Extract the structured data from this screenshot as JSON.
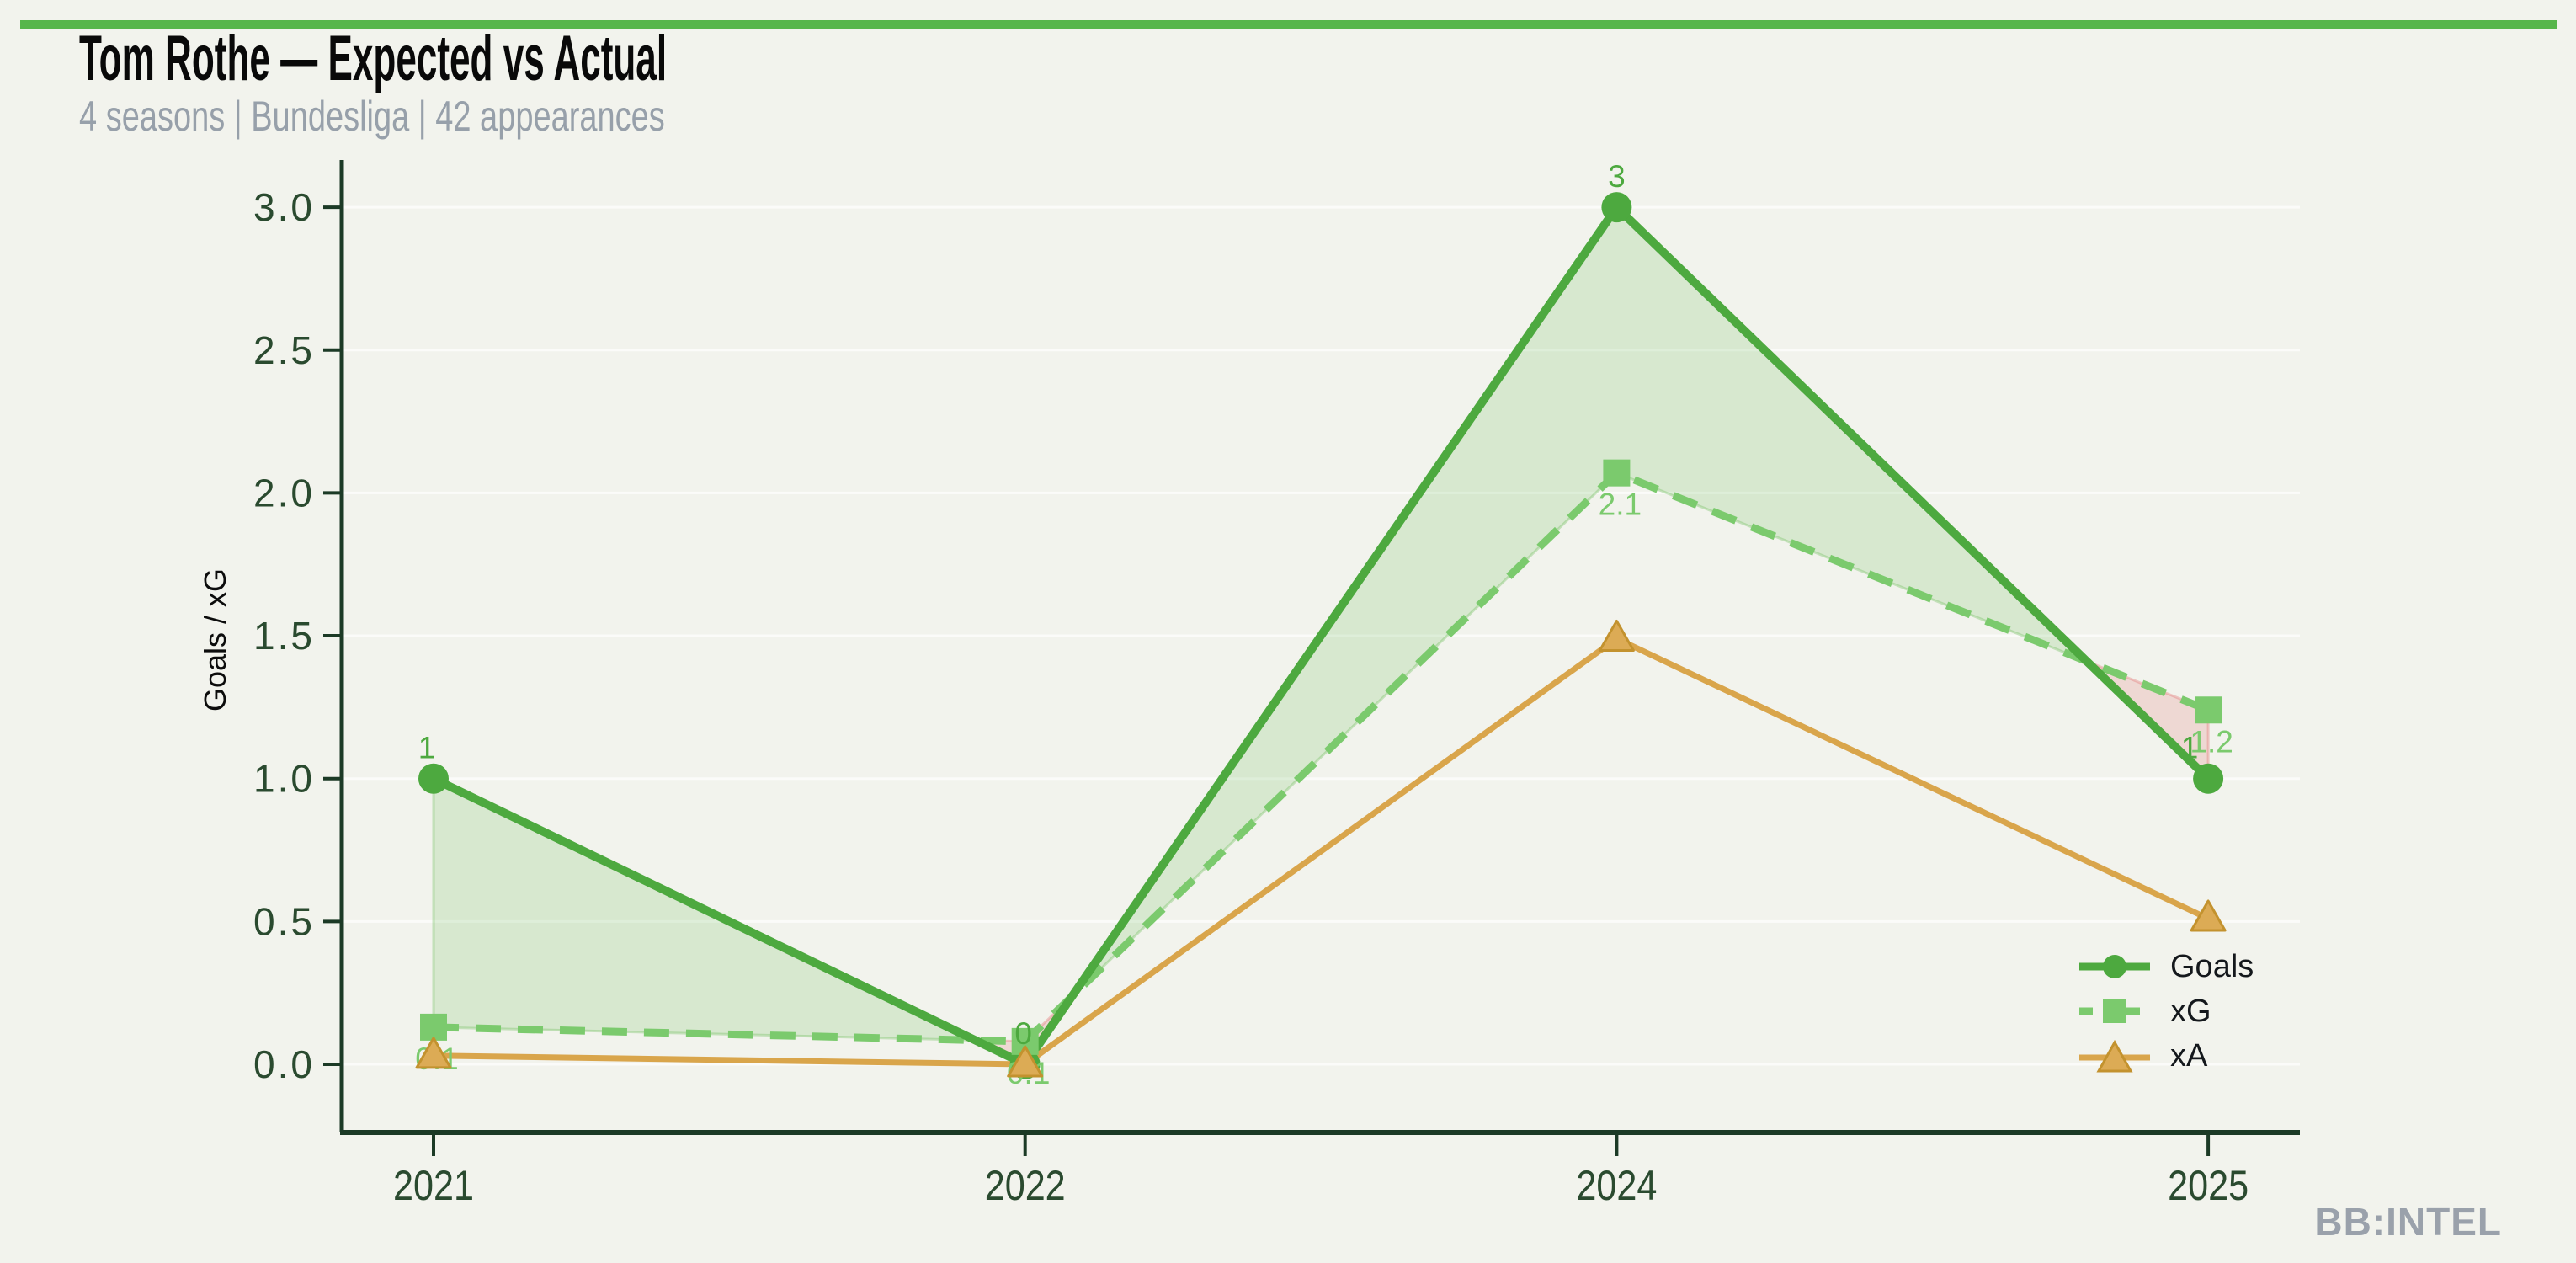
{
  "header": {
    "title": "Tom Rothe — Expected vs Actual",
    "subtitle": "4 seasons | Bundesliga | 42 appearances"
  },
  "footer": {
    "watermark": "BB:INTEL"
  },
  "colors": {
    "background": "#f2f3ed",
    "top_bar": "#57b64b",
    "axis": "#1c3a26",
    "tick_label": "#2a4a2f",
    "subtitle": "#97a0aa",
    "watermark": "#9aa1ab",
    "goals": "#4da93f",
    "xg": "#7bca6d",
    "xa": "#d9a54b",
    "xa_marker_fill": "#dcab55",
    "xa_marker_edge": "#c3922e",
    "fill_surplus": "rgba(110,190,90,0.20)",
    "fill_surplus_edge": "rgba(110,190,90,0.35)",
    "fill_deficit": "rgba(225,110,110,0.20)",
    "fill_deficit_edge": "rgba(225,110,110,0.35)",
    "gridline": "rgba(255,255,255,0.65)"
  },
  "chart_data": {
    "type": "line",
    "title": "Tom Rothe — Expected vs Actual",
    "subtitle": "4 seasons | Bundesliga | 42 appearances",
    "categories": [
      "2021",
      "2022",
      "2024",
      "2025"
    ],
    "series": [
      {
        "name": "Goals",
        "marker": "circle",
        "dash": "solid",
        "values": [
          1,
          0,
          3,
          1
        ],
        "labels": [
          "1",
          "0",
          "3",
          "1"
        ]
      },
      {
        "name": "xG",
        "marker": "square",
        "dash": "dashed",
        "values": [
          0.13,
          0.08,
          2.07,
          1.24
        ],
        "labels": [
          "0.1",
          "0.1",
          "2.1",
          "1.2"
        ]
      },
      {
        "name": "xA",
        "marker": "triangle",
        "dash": "solid",
        "values": [
          0.03,
          0.0,
          1.49,
          0.51
        ],
        "labels": []
      }
    ],
    "xlabel": "",
    "ylabel": "Goals / xG",
    "yticks": [
      {
        "value": 0.0,
        "label": "0.0"
      },
      {
        "value": 0.5,
        "label": "0.5"
      },
      {
        "value": 1.0,
        "label": "1.0"
      },
      {
        "value": 1.5,
        "label": "1.5"
      },
      {
        "value": 2.0,
        "label": "2.0"
      },
      {
        "value": 2.5,
        "label": "2.5"
      },
      {
        "value": 3.0,
        "label": "3.0"
      }
    ],
    "ylim": [
      -0.24,
      3.16
    ],
    "grid": "horizontal",
    "legend_position": "lower right",
    "fill_between": {
      "surplus": "green shading where Goals > xG",
      "deficit": "red shading where xG > Goals"
    }
  }
}
